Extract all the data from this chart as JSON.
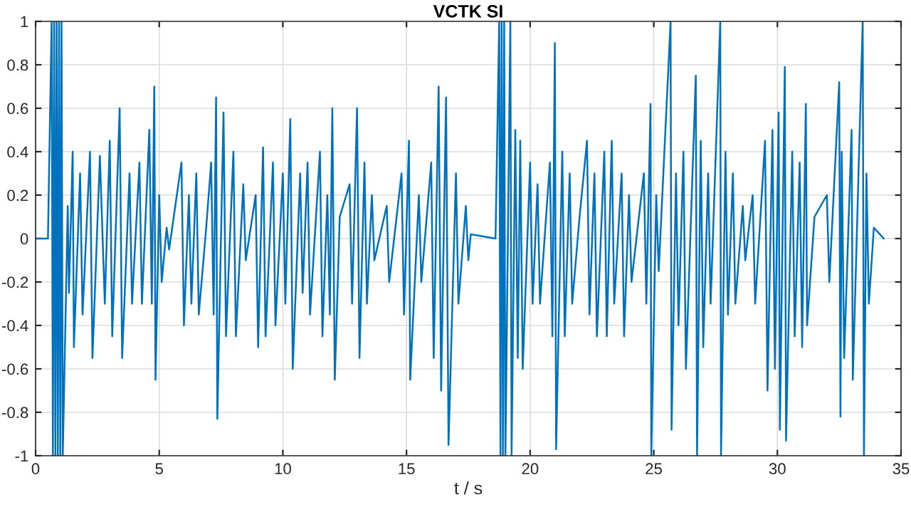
{
  "chart_data": {
    "type": "line",
    "title": "VCTK SI",
    "xlabel": "t / s",
    "xlim": [
      0,
      35
    ],
    "ylim": [
      -1,
      1
    ],
    "xticks": [
      0,
      5,
      10,
      15,
      20,
      25,
      30,
      35
    ],
    "yticks": [
      -1,
      -0.8,
      -0.6,
      -0.4,
      -0.2,
      0,
      0.2,
      0.4,
      0.6,
      0.8,
      1
    ],
    "grid": true,
    "series": [
      {
        "color": "#0072bd",
        "x": [
          0,
          0.5,
          0.65,
          0.7,
          0.75,
          0.8,
          0.85,
          0.9,
          0.95,
          1.0,
          1.05,
          1.1,
          1.3,
          1.35,
          1.5,
          1.55,
          1.8,
          1.9,
          2.2,
          2.3,
          2.6,
          2.8,
          3.0,
          3.1,
          3.4,
          3.5,
          3.8,
          3.9,
          4.2,
          4.3,
          4.6,
          4.7,
          4.8,
          4.85,
          5.0,
          5.1,
          5.3,
          5.4,
          5.9,
          6.0,
          6.2,
          6.3,
          6.5,
          6.6,
          6.9,
          7.1,
          7.2,
          7.3,
          7.35,
          7.6,
          7.7,
          8.0,
          8.1,
          8.4,
          8.5,
          8.9,
          9.0,
          9.2,
          9.3,
          9.6,
          9.7,
          10.0,
          10.1,
          10.3,
          10.4,
          10.7,
          10.8,
          11.0,
          11.1,
          11.5,
          11.6,
          11.8,
          11.9,
          12.0,
          12.1,
          12.3,
          12.7,
          12.8,
          13.0,
          13.1,
          13.3,
          13.4,
          13.6,
          13.7,
          14.2,
          14.3,
          14.8,
          14.9,
          15.1,
          15.15,
          15.5,
          15.6,
          16.0,
          16.1,
          16.3,
          16.4,
          16.6,
          16.7,
          17.0,
          17.1,
          17.4,
          17.5,
          17.6,
          18.6,
          18.75,
          18.8,
          18.85,
          18.9,
          18.95,
          19.0,
          19.2,
          19.25,
          19.4,
          19.5,
          19.6,
          19.7,
          20.0,
          20.1,
          20.3,
          20.4,
          20.8,
          20.9,
          21.0,
          21.05,
          21.3,
          21.4,
          21.6,
          21.7,
          22.0,
          22.3,
          22.4,
          22.6,
          22.7,
          23.0,
          23.1,
          23.3,
          23.4,
          23.7,
          23.8,
          24.0,
          24.1,
          24.6,
          24.7,
          24.87,
          24.9,
          25.1,
          25.2,
          25.68,
          25.72,
          25.9,
          26.0,
          26.2,
          26.3,
          26.7,
          26.75,
          26.9,
          27.0,
          27.2,
          27.3,
          27.69,
          27.72,
          27.9,
          28.0,
          28.2,
          28.3,
          28.6,
          28.7,
          29.0,
          29.1,
          29.5,
          29.6,
          29.8,
          29.9,
          30.05,
          30.1,
          30.3,
          30.35,
          30.6,
          30.7,
          30.9,
          31.0,
          31.15,
          31.2,
          31.5,
          32.0,
          32.1,
          32.5,
          32.55,
          32.6,
          32.7,
          33.0,
          33.05,
          33.45,
          33.5,
          33.6,
          33.7,
          33.9,
          34.3
        ],
        "values": [
          0,
          0,
          1,
          -1,
          1,
          -1,
          1,
          -1,
          1,
          -1,
          1,
          -1,
          0.15,
          -0.25,
          0.4,
          -0.5,
          0.3,
          -0.35,
          0.4,
          -0.55,
          0.38,
          -0.3,
          0.45,
          -0.45,
          0.6,
          -0.55,
          0.3,
          -0.3,
          0.35,
          -0.3,
          0.5,
          -0.3,
          0.7,
          -0.65,
          0.2,
          -0.2,
          0.05,
          -0.05,
          0.35,
          -0.4,
          0.2,
          -0.3,
          0.3,
          -0.35,
          0.05,
          0.35,
          -0.35,
          0.65,
          -0.83,
          0.58,
          -0.45,
          0.4,
          -0.45,
          0.25,
          -0.1,
          0.2,
          -0.5,
          0.42,
          -0.45,
          0.35,
          -0.4,
          0.3,
          -0.3,
          0.55,
          -0.6,
          0.3,
          -0.25,
          0.35,
          -0.35,
          0.4,
          -0.45,
          0.2,
          -0.35,
          0.6,
          -0.65,
          0.1,
          0.25,
          -0.3,
          0.6,
          -0.55,
          0.35,
          -0.3,
          0.2,
          -0.1,
          0.15,
          -0.2,
          0.3,
          -0.35,
          0.45,
          -0.65,
          0.2,
          -0.2,
          0.35,
          -0.55,
          0.7,
          -0.7,
          0.65,
          -0.95,
          0.3,
          -0.3,
          0.15,
          -0.1,
          0.02,
          0,
          1,
          -1,
          1,
          -1,
          1,
          -1,
          1,
          -1,
          0.5,
          -0.55,
          0.45,
          -0.6,
          0.35,
          -0.3,
          0.25,
          -0.3,
          0.35,
          -0.45,
          0.9,
          -0.97,
          0.4,
          -0.45,
          0.3,
          -0.3,
          0.1,
          0.45,
          -0.35,
          0.3,
          -0.45,
          0.4,
          -0.45,
          0.45,
          -0.3,
          0.3,
          -0.45,
          0.2,
          -0.2,
          0.3,
          -0.3,
          0.62,
          -1,
          0.2,
          -0.15,
          1,
          -0.88,
          0.3,
          -0.4,
          0.4,
          -0.6,
          0.75,
          -1,
          0.45,
          -0.5,
          0.3,
          -0.3,
          1,
          -1,
          0.4,
          -0.35,
          0.3,
          -0.3,
          0.15,
          -0.1,
          0.2,
          -0.3,
          0.45,
          -0.7,
          0.5,
          -0.6,
          0.58,
          -0.88,
          0.79,
          -0.93,
          0.4,
          -0.45,
          0.35,
          -0.5,
          0.62,
          -0.4,
          0.1,
          0.2,
          -0.2,
          0.72,
          -0.82,
          0.4,
          -0.55,
          0.5,
          -0.65,
          1,
          -1,
          0.3,
          -0.3,
          0.05,
          0
        ]
      }
    ]
  }
}
